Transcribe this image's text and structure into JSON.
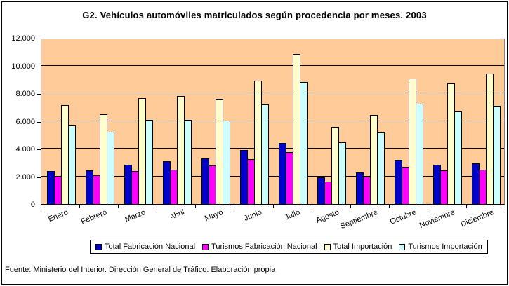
{
  "title": "G2. Vehículos automóviles matriculados según procedencia por meses. 2003",
  "footer": "Fuente: Ministerio del Interior. Dirección General de Tráfico. Elaboración propia",
  "colors": {
    "plot_background": "#FFCC99",
    "plot_border": "#848284",
    "grid": "#000000",
    "series_1": "#0000CC",
    "series_2": "#FF00FF",
    "series_3": "#FFFFCC",
    "series_4": "#CCFFFF"
  },
  "chart_data": {
    "type": "bar",
    "title": "G2. Vehículos automóviles matriculados según procedencia por meses. 2003",
    "categories": [
      "Enero",
      "Febrero",
      "Marzo",
      "Abril",
      "Mayo",
      "Junio",
      "Julio",
      "Agosto",
      "Septiembre",
      "Octubre",
      "Noviembre",
      "Diciembre"
    ],
    "series": [
      {
        "name": "Total Fabricación Nacional",
        "color": "#0000CC",
        "values": [
          2400,
          2450,
          2850,
          3100,
          3300,
          3900,
          4400,
          1900,
          2300,
          3200,
          2850,
          2950
        ]
      },
      {
        "name": "Turismos Fabricación Nacional",
        "color": "#FF00FF",
        "values": [
          2050,
          2100,
          2400,
          2500,
          2800,
          3250,
          3750,
          1600,
          1950,
          2700,
          2450,
          2500
        ]
      },
      {
        "name": "Total Importación",
        "color": "#FFFFCC",
        "values": [
          7150,
          6500,
          7650,
          7800,
          7600,
          8900,
          10850,
          5550,
          6450,
          9050,
          8700,
          9400
        ]
      },
      {
        "name": "Turismos Importación",
        "color": "#CCFFFF",
        "values": [
          5650,
          5200,
          6100,
          6100,
          6050,
          7200,
          8800,
          4450,
          5150,
          7250,
          6700,
          7100
        ]
      }
    ],
    "xlabel": "",
    "ylabel": "",
    "ylim": [
      0,
      12000
    ],
    "ytick_step": 2000,
    "ytick_labels": [
      "0",
      "2.000",
      "4.000",
      "6.000",
      "8.000",
      "10.000",
      "12.000"
    ],
    "grid": true,
    "legend_position": "bottom",
    "plot_bg": "#FFCC99"
  }
}
